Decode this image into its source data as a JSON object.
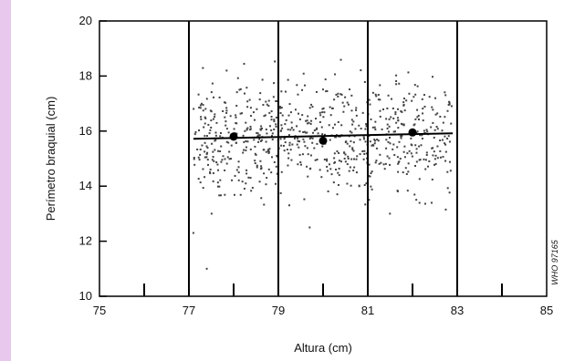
{
  "chart_data": {
    "type": "scatter",
    "title": "",
    "xlabel": "Altura (cm)",
    "ylabel": "Perímetro braquial (cm)",
    "xlim": [
      75,
      85
    ],
    "ylim": [
      10,
      20
    ],
    "x_ticks": [
      "75",
      "77",
      "79",
      "81",
      "83",
      "85"
    ],
    "y_ticks": [
      "10",
      "12",
      "14",
      "16",
      "18",
      "20"
    ],
    "x_minor_ticks": [
      76,
      78,
      80,
      82,
      84
    ],
    "vertical_dividers": [
      77,
      79,
      81,
      83
    ],
    "point_cloud": {
      "x_range": [
        77.1,
        82.9
      ],
      "y_center": 15.8,
      "y_spread": 1.35,
      "count": 760,
      "outliers": [
        [
          77.4,
          11.0
        ],
        [
          77.1,
          12.3
        ],
        [
          79.7,
          12.5
        ]
      ]
    },
    "trend_line": {
      "x": [
        77.1,
        82.9
      ],
      "y": [
        15.72,
        15.92
      ]
    },
    "group_means": [
      {
        "x": 78.0,
        "y": 15.8
      },
      {
        "x": 80.0,
        "y": 15.65
      },
      {
        "x": 82.0,
        "y": 15.95
      }
    ],
    "annotation": "WHO 97165",
    "colors": {
      "points": "#444444",
      "axes": "#000000",
      "background": "#ffffff",
      "page_margin": "#e8c8ec"
    }
  }
}
